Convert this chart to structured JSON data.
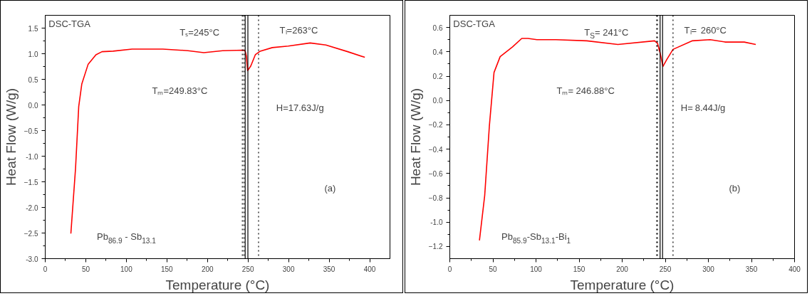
{
  "chart_data": [
    {
      "type": "line",
      "xlabel": "Temperature (°C)",
      "ylabel": "Heat Flow (W/g)",
      "x": [
        31.6,
        37.4,
        41.3,
        45.1,
        52.8,
        62.5,
        70,
        83.7,
        107,
        145,
        176,
        195.5,
        218.7,
        243.7,
        246.4,
        248,
        249.5,
        253.4,
        259,
        265,
        280,
        299.6,
        326.6,
        346,
        372.9,
        394
      ],
      "series": [
        {
          "color": "#ff0000",
          "values": [
            -2.51,
            -1.23,
            -0.03,
            0.41,
            0.79,
            0.98,
            1.04,
            1.05,
            1.09,
            1.09,
            1.06,
            1.02,
            1.06,
            1.07,
            1.06,
            0.95,
            0.67,
            0.76,
            0.98,
            1.05,
            1.12,
            1.15,
            1.21,
            1.17,
            1.04,
            0.93
          ]
        }
      ],
      "xlim": [
        0,
        425
      ],
      "xticks": [
        0,
        50,
        100,
        150,
        200,
        250,
        300,
        350,
        400
      ],
      "ylim": [
        -3,
        1.75
      ],
      "yticks": [
        {
          "value": -3,
          "label": "-3.0"
        },
        -2.5,
        {
          "value": -2,
          "label": "-2.0"
        },
        -1.5,
        {
          "value": -1,
          "label": "-1.0"
        },
        -0.5,
        {
          "value": 0,
          "label": "0.0"
        },
        0.5,
        {
          "value": 1,
          "label": "1.0"
        },
        1.5
      ],
      "marker": "none",
      "line_style": "solid",
      "ref_lines": [
        {
          "axis": "x",
          "value": 243,
          "color": "#000000",
          "line_style": "dotted"
        },
        {
          "axis": "x",
          "value": 245,
          "color": "#000000",
          "line_style": "dotted"
        },
        {
          "axis": "x",
          "value": 246.5,
          "color": "#000000",
          "line_style": "solid"
        },
        {
          "axis": "x",
          "value": 249.83,
          "color": "#000000",
          "line_style": "solid"
        },
        {
          "axis": "x",
          "value": 263,
          "color": "#000000",
          "line_style": "dotted"
        }
      ],
      "annotations": [
        "DSC-TGA",
        "Tₛ=245°C",
        "Tₗ=263°C",
        "Tₘ=249.83°C",
        "H=17.63J/g",
        "(a)",
        "Pb$_{86.9}$ - Sb$_{13.1}$"
      ]
    },
    {
      "type": "line",
      "xlabel": "Temperature (°C)",
      "ylabel": "Heat Flow (W/g)",
      "x": [
        34.4,
        40.5,
        45.9,
        51.3,
        58.4,
        72.8,
        83.5,
        90.7,
        101,
        123,
        159,
        195,
        237.6,
        241,
        244,
        247.3,
        252,
        259,
        281,
        302,
        320,
        341.6,
        355
      ],
      "series": [
        {
          "color": "#ff0000",
          "values": [
            -1.15,
            -0.78,
            -0.21,
            0.23,
            0.36,
            0.44,
            0.51,
            0.51,
            0.5,
            0.5,
            0.49,
            0.46,
            0.49,
            0.47,
            0.39,
            0.28,
            0.34,
            0.42,
            0.49,
            0.5,
            0.48,
            0.48,
            0.46
          ]
        }
      ],
      "xlim": [
        0,
        400
      ],
      "xticks": [
        0,
        50,
        100,
        150,
        200,
        250,
        300,
        350,
        400
      ],
      "ylim": [
        -1.3,
        0.7
      ],
      "yticks": [
        -1.2,
        {
          "value": -1,
          "label": "-1.0"
        },
        -0.8,
        -0.6,
        -0.4,
        -0.2,
        {
          "value": 0,
          "label": "0.0"
        },
        0.2,
        0.4,
        0.6
      ],
      "marker": "none",
      "line_style": "solid",
      "ref_lines": [
        {
          "axis": "x",
          "value": 240,
          "color": "#000000",
          "line_style": "dotted"
        },
        {
          "axis": "x",
          "value": 241,
          "color": "#000000",
          "line_style": "dotted"
        },
        {
          "axis": "x",
          "value": 244,
          "color": "#000000",
          "line_style": "solid"
        },
        {
          "axis": "x",
          "value": 246.88,
          "color": "#000000",
          "line_style": "solid"
        },
        {
          "axis": "x",
          "value": 259,
          "color": "#000000",
          "line_style": "dotted"
        }
      ],
      "annotations": [
        "DSC-TGA",
        "T$_{S}$= 241°C",
        "Tₗ= 260°C",
        "Tₘ= 246.88°C",
        "H= 8.44J/g",
        "(b)",
        "Pb$_{85.9}$-Sb$_{13.1}$-Bi$_{1}$"
      ]
    }
  ]
}
